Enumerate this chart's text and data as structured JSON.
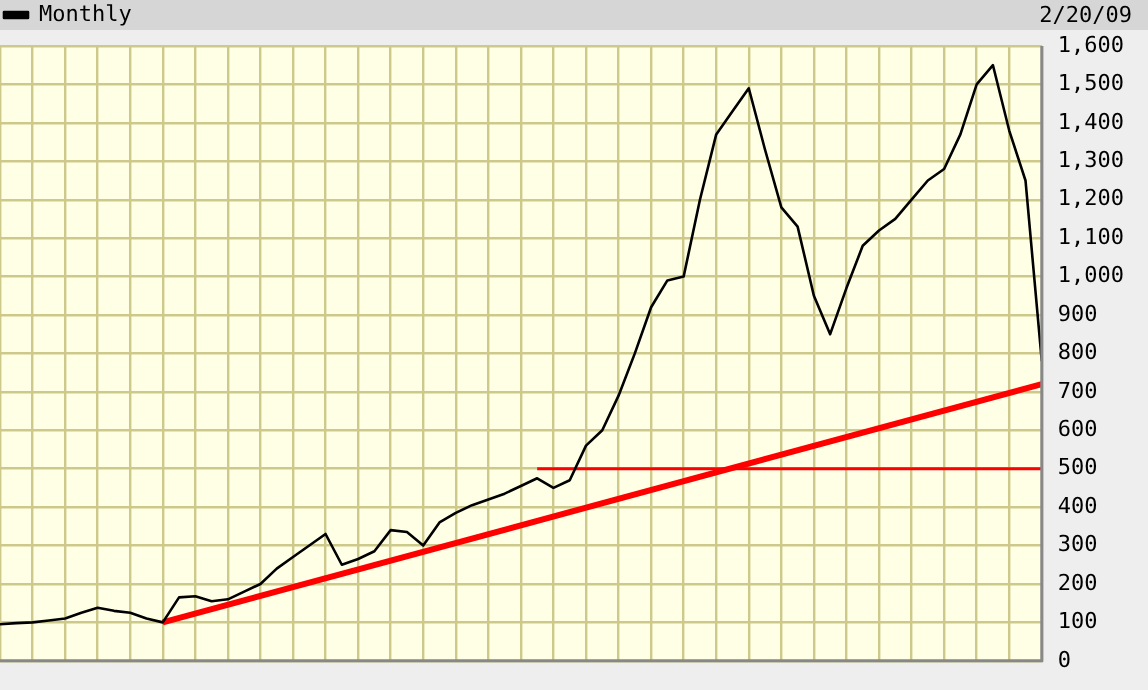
{
  "chart_data": {
    "type": "line",
    "categories": [
      null,
      null,
      null,
      null,
      null,
      null,
      null,
      null,
      null,
      null,
      null,
      null,
      null,
      null,
      null,
      null,
      null,
      null,
      null,
      null,
      null,
      null,
      null,
      null,
      null,
      null,
      null,
      null,
      null,
      null,
      null,
      null,
      null,
      null,
      null,
      null,
      null,
      null,
      null,
      null,
      null,
      null,
      null,
      null,
      null,
      null,
      null,
      null,
      null,
      null,
      null,
      null,
      null,
      null,
      null,
      null,
      null,
      null,
      null,
      null,
      null,
      null,
      null,
      null,
      null
    ],
    "series": [
      {
        "name": "Monthly",
        "color": "#000000",
        "values": [
          95,
          98,
          100,
          105,
          110,
          125,
          138,
          130,
          125,
          110,
          100,
          165,
          168,
          155,
          160,
          180,
          200,
          240,
          270,
          300,
          330,
          250,
          265,
          285,
          340,
          335,
          300,
          360,
          385,
          405,
          420,
          435,
          455,
          475,
          450,
          470,
          560,
          600,
          690,
          800,
          920,
          990,
          1000,
          1200,
          1370,
          1430,
          1490,
          1330,
          1180,
          1130,
          950,
          850,
          970,
          1080,
          1120,
          1150,
          1200,
          1250,
          1280,
          1370,
          1500,
          1550,
          1380,
          1250,
          780
        ]
      },
      {
        "color": "#ff0000",
        "values": [
          null,
          null,
          null,
          null,
          null,
          null,
          null,
          null,
          null,
          null,
          100,
          null,
          null,
          null,
          null,
          null,
          null,
          null,
          null,
          null,
          null,
          null,
          null,
          null,
          null,
          null,
          null,
          null,
          null,
          null,
          null,
          null,
          null,
          null,
          null,
          null,
          null,
          null,
          null,
          null,
          null,
          null,
          null,
          null,
          null,
          null,
          null,
          null,
          null,
          null,
          null,
          null,
          null,
          null,
          null,
          null,
          null,
          null,
          null,
          null,
          null,
          null,
          null,
          null,
          720
        ]
      },
      {
        "color": "#ff0000",
        "values": [
          null,
          null,
          null,
          null,
          null,
          null,
          null,
          null,
          null,
          null,
          null,
          null,
          null,
          null,
          null,
          null,
          null,
          null,
          null,
          null,
          null,
          null,
          null,
          null,
          null,
          null,
          null,
          null,
          null,
          null,
          null,
          null,
          null,
          500,
          null,
          null,
          null,
          null,
          null,
          null,
          null,
          null,
          null,
          null,
          null,
          null,
          null,
          null,
          null,
          null,
          null,
          null,
          null,
          null,
          null,
          null,
          null,
          null,
          null,
          null,
          null,
          null,
          null,
          null,
          500
        ]
      }
    ],
    "ylim": [
      0,
      1600
    ],
    "yticks": [
      0,
      100,
      200,
      300,
      400,
      500,
      600,
      700,
      800,
      900,
      {
        "value": 1000,
        "label": "1,000"
      },
      {
        "value": 1100,
        "label": "1,100"
      },
      {
        "value": 1200,
        "label": "1,200"
      },
      {
        "value": 1300,
        "label": "1,300"
      },
      {
        "value": 1400,
        "label": "1,400"
      },
      {
        "value": 1500,
        "label": "1,500"
      },
      {
        "value": 1600,
        "label": "1,600"
      }
    ],
    "tick_labels": "y",
    "grid": true,
    "legend": "top left",
    "marker": "none",
    "line_style": "solid",
    "annotations": [
      "2/20/09"
    ]
  }
}
